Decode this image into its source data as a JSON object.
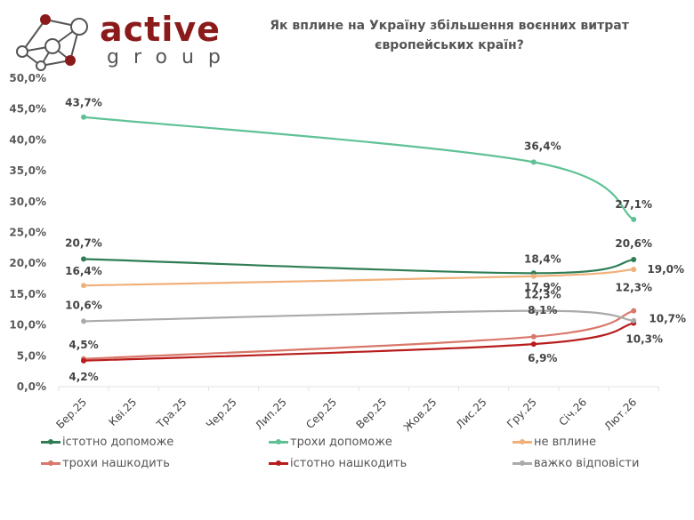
{
  "brand": {
    "word": "active",
    "sub": "group",
    "color": "#8b1a1a"
  },
  "chart_data": {
    "type": "line",
    "title": "Як вплине на Україну збільшення воєнних витрат європейських країн?",
    "title_line1": "Як вплине на Україну збільшення воєнних витрат",
    "title_line2": "європейських країн?",
    "xlabel": "",
    "ylabel": "",
    "categories": [
      "Бер.25",
      "Кві.25",
      "Тра.25",
      "Чер.25",
      "Лип.25",
      "Сер.25",
      "Вер.25",
      "Жов.25",
      "Лис.25",
      "Гру.25",
      "Січ.26",
      "Лют.26"
    ],
    "ylim": [
      0,
      50
    ],
    "yticks": [
      "0,0%",
      "5,0%",
      "10,0%",
      "15,0%",
      "20,0%",
      "25,0%",
      "30,0%",
      "35,0%",
      "40,0%",
      "45,0%",
      "50,0%"
    ],
    "grid": false,
    "legend_position": "bottom",
    "series": [
      {
        "name": "істотно допоможе",
        "color": "#2e7d55",
        "points": [
          {
            "x": "Бер.25",
            "y": 20.7,
            "label": "20,7%"
          },
          {
            "x": "Гру.25",
            "y": 18.4,
            "label": "18,4%"
          },
          {
            "x": "Лют.26",
            "y": 20.6,
            "label": "20,6%"
          }
        ]
      },
      {
        "name": "трохи допоможе",
        "color": "#5fc295",
        "points": [
          {
            "x": "Бер.25",
            "y": 43.7,
            "label": "43,7%"
          },
          {
            "x": "Гру.25",
            "y": 36.4,
            "label": "36,4%"
          },
          {
            "x": "Лют.26",
            "y": 27.1,
            "label": "27,1%"
          }
        ]
      },
      {
        "name": "не вплине",
        "color": "#f0b07a",
        "points": [
          {
            "x": "Бер.25",
            "y": 16.4,
            "label": "16,4%"
          },
          {
            "x": "Гру.25",
            "y": 17.9,
            "label": "17,9%"
          },
          {
            "x": "Лют.26",
            "y": 19.0,
            "label": "19,0%"
          }
        ]
      },
      {
        "name": "трохи нашкодить",
        "color": "#d9776a",
        "points": [
          {
            "x": "Бер.25",
            "y": 4.5,
            "label": "4,5%"
          },
          {
            "x": "Гру.25",
            "y": 8.1,
            "label": "8,1%"
          },
          {
            "x": "Лют.26",
            "y": 12.3,
            "label": "12,3%"
          }
        ]
      },
      {
        "name": "істотно нашкодить",
        "color": "#b81c1c",
        "points": [
          {
            "x": "Бер.25",
            "y": 4.2,
            "label": "4,2%"
          },
          {
            "x": "Гру.25",
            "y": 6.9,
            "label": "6,9%"
          },
          {
            "x": "Лют.26",
            "y": 10.3,
            "label": "10,3%"
          }
        ]
      },
      {
        "name": "важко відповісти",
        "color": "#aaaaaa",
        "points": [
          {
            "x": "Бер.25",
            "y": 10.6,
            "label": "10,6%"
          },
          {
            "x": "Гру.25",
            "y": 12.3,
            "label": "12,3%"
          },
          {
            "x": "Лют.26",
            "y": 10.7,
            "label": "10,7%"
          }
        ]
      }
    ]
  }
}
